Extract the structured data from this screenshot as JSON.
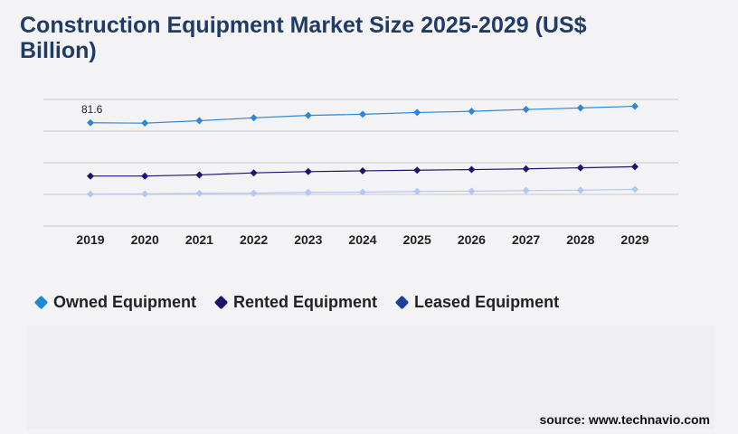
{
  "chart_data": {
    "type": "line",
    "title": "Construction Equipment Market Size 2025-2029 (US$ Billion)",
    "categories": [
      "2019",
      "2020",
      "2021",
      "2022",
      "2023",
      "2024",
      "2025",
      "2026",
      "2027",
      "2028",
      "2029"
    ],
    "ylim": [
      0,
      100
    ],
    "grid": true,
    "legend_position": "bottom",
    "series": [
      {
        "name": "Owned Equipment",
        "color": "#2e86d4",
        "values": [
          81.6,
          81.3,
          83.2,
          85.5,
          87.4,
          88.3,
          89.7,
          90.6,
          92.1,
          93.3,
          94.6
        ]
      },
      {
        "name": "Rented Equipment",
        "color": "#1b1669",
        "values": [
          39.5,
          39.5,
          40.4,
          42.0,
          43.0,
          43.6,
          44.1,
          44.6,
          45.2,
          46.0,
          46.9
        ]
      },
      {
        "name": "Leased Equipment",
        "color": "#afc9f3",
        "values": [
          25.2,
          25.4,
          25.8,
          26.0,
          26.6,
          26.8,
          27.3,
          27.6,
          28.0,
          28.3,
          29.0
        ]
      }
    ],
    "data_labels": [
      {
        "series": 0,
        "index": 0,
        "text": "81.6"
      }
    ]
  },
  "legend_marker_colors": [
    "#1e88d6",
    "#1b1669",
    "#1e3f9a"
  ],
  "source_text": "source: www.technavio.com"
}
